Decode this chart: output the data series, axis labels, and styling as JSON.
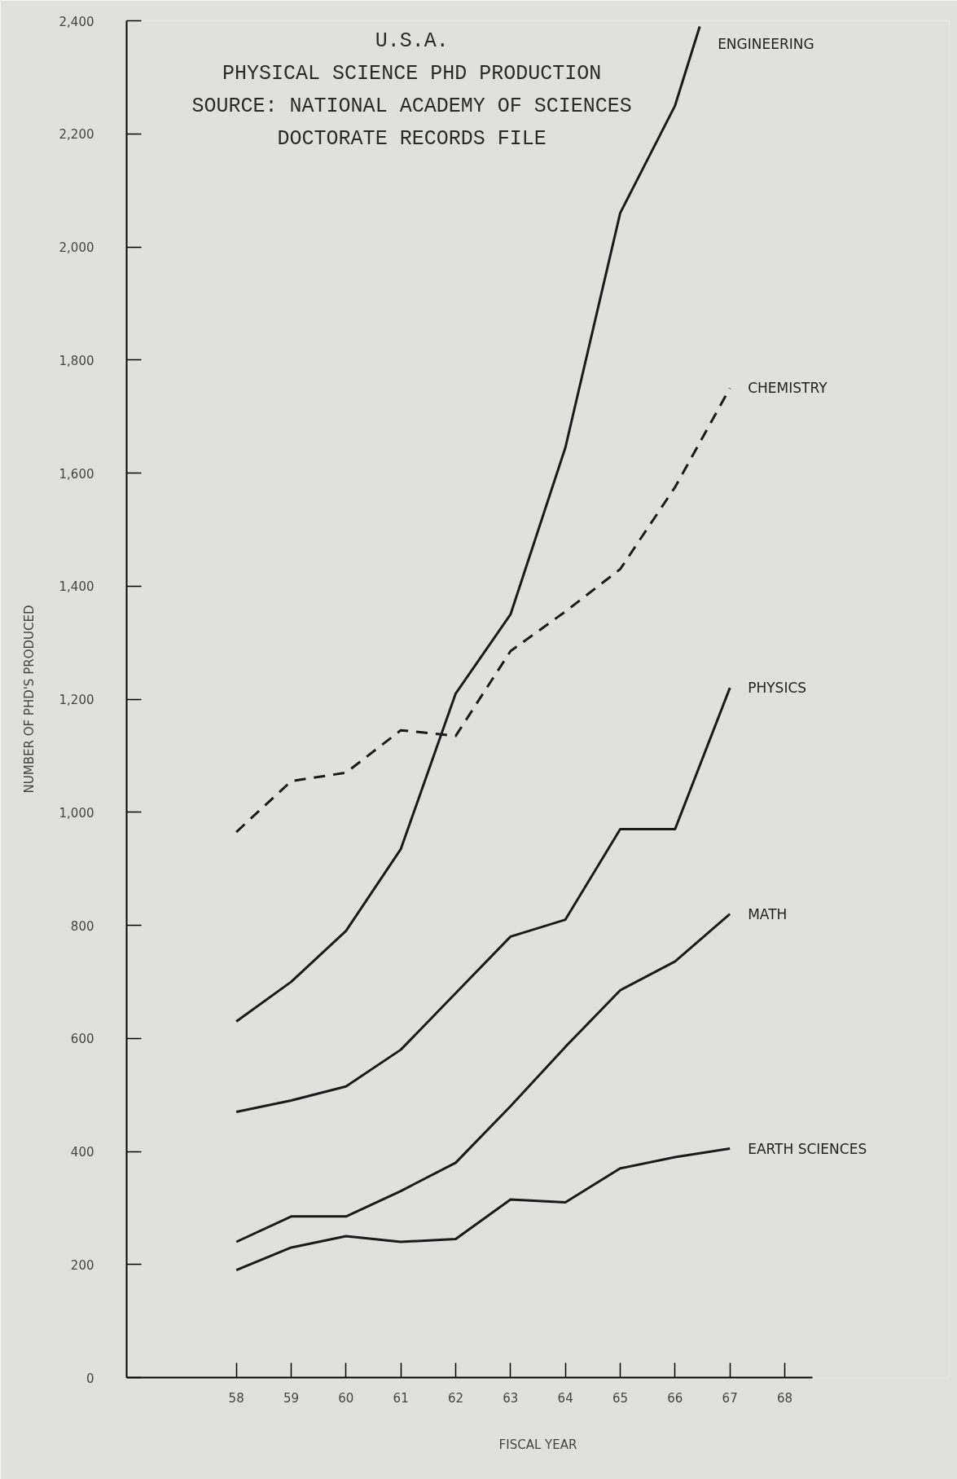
{
  "chart_data": {
    "type": "line",
    "title": "U.S.A.",
    "subtitle": "PHYSICAL SCIENCE PHD PRODUCTION",
    "annotations": [
      "SOURCE: NATIONAL ACADEMY OF SCIENCES",
      "DOCTORATE RECORDS FILE"
    ],
    "xlabel": "FISCAL YEAR",
    "ylabel": "NUMBER OF PHD'S PRODUCED",
    "x": [
      58,
      59,
      60,
      61,
      62,
      63,
      64,
      65,
      66,
      67
    ],
    "series": [
      {
        "name": "ENGINEERING",
        "color": "#1a1a1a",
        "line_style": "solid",
        "x": [
          58,
          59,
          60,
          61,
          62,
          63,
          64,
          65,
          66,
          66.45
        ],
        "values": [
          630,
          700,
          790,
          935,
          1210,
          1350,
          1645,
          2060,
          2250,
          2390
        ]
      },
      {
        "name": "CHEMISTRY",
        "color": "#1a1a1a",
        "line_style": "dashed",
        "values": [
          965,
          1055,
          1070,
          1145,
          1135,
          1285,
          1355,
          1430,
          1575,
          1750
        ]
      },
      {
        "name": "PHYSICS",
        "color": "#1a1a1a",
        "line_style": "solid",
        "values": [
          470,
          490,
          515,
          580,
          680,
          780,
          810,
          970,
          970,
          1220
        ]
      },
      {
        "name": "MATH",
        "color": "#1a1a1a",
        "line_style": "solid",
        "values": [
          240,
          285,
          285,
          330,
          380,
          480,
          585,
          685,
          736,
          820
        ]
      },
      {
        "name": "EARTH SCIENCES",
        "color": "#1a1a1a",
        "line_style": "solid",
        "values": [
          190,
          230,
          250,
          240,
          245,
          315,
          310,
          370,
          390,
          405
        ]
      }
    ],
    "xlim": [
      56,
      68.5
    ],
    "xticks": [
      58,
      59,
      60,
      61,
      62,
      63,
      64,
      65,
      66,
      67,
      68
    ],
    "ylim": [
      0,
      2400
    ],
    "yticks": [
      0,
      200,
      400,
      600,
      800,
      {
        "value": 1000,
        "label": "1,000"
      },
      {
        "value": 1200,
        "label": "1,200"
      },
      {
        "value": 1400,
        "label": "1,400"
      },
      {
        "value": 1600,
        "label": "1,600"
      },
      {
        "value": 1800,
        "label": "1,800"
      },
      {
        "value": 2000,
        "label": "2,000"
      },
      {
        "value": 2200,
        "label": "2,200"
      },
      {
        "value": 2400,
        "label": "2,400"
      }
    ],
    "grid": false,
    "marker": "none"
  }
}
